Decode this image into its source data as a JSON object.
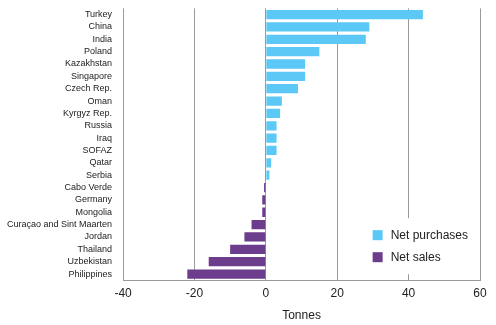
{
  "chart_data": {
    "type": "bar",
    "orientation": "horizontal",
    "x_label": "Tonnes",
    "categories": [
      "Turkey",
      "China",
      "India",
      "Poland",
      "Kazakhstan",
      "Singapore",
      "Czech Rep.",
      "Oman",
      "Kyrgyz Rep.",
      "Russia",
      "Iraq",
      "SOFAZ",
      "Qatar",
      "Serbia",
      "Cabo Verde",
      "Germany",
      "Mongolia",
      "Curaçao and Sint Maarten",
      "Jordan",
      "Thailand",
      "Uzbekistan",
      "Philippines"
    ],
    "series": [
      {
        "name": "Net purchases",
        "color": "#5bc8f5",
        "values": [
          44,
          29,
          28,
          15,
          11,
          11,
          9,
          4.5,
          4,
          3,
          3,
          3,
          1.5,
          1,
          null,
          null,
          null,
          null,
          null,
          null,
          null,
          null
        ]
      },
      {
        "name": "Net sales",
        "color": "#6b3d8c",
        "values": [
          null,
          null,
          null,
          null,
          null,
          null,
          null,
          null,
          null,
          null,
          null,
          null,
          null,
          null,
          -0.5,
          -1,
          -1,
          -4,
          -6,
          -10,
          -16,
          -22
        ]
      }
    ],
    "xlim": [
      -40,
      60
    ],
    "xticks": [
      -40,
      -20,
      0,
      20,
      40,
      60
    ],
    "grid": true,
    "legend": "bottom-right"
  }
}
